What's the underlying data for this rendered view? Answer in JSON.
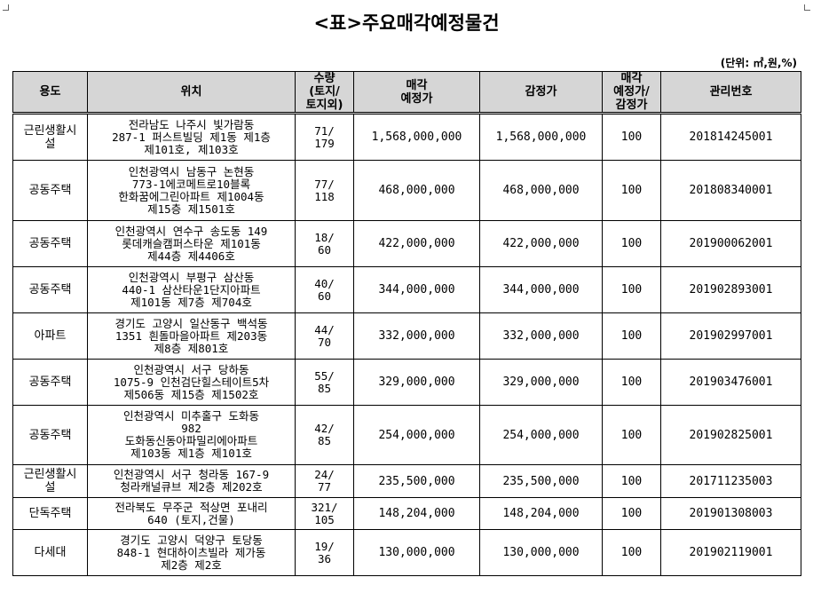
{
  "title": "<표>주요매각예정물건",
  "unit": "(단위: ㎡,원,%)",
  "headers": {
    "use": "용도",
    "location": "위치",
    "qty": [
      "수량",
      "(토지/",
      "토지외)"
    ],
    "sale_price": [
      "매각",
      "예정가"
    ],
    "appraisal": "감정가",
    "ratio": [
      "매각",
      "예정가/",
      "감정가"
    ],
    "mgmt_no": "관리번호"
  },
  "rows": [
    {
      "use": [
        "근린생활시",
        "설"
      ],
      "location": [
        "전라남도 나주시 빛가람동",
        "287-1 퍼스트빌딩 제1동 제1층",
        "제101호, 제103호"
      ],
      "qty": [
        "71/",
        "179"
      ],
      "sale_price": "1,568,000,000",
      "appraisal": "1,568,000,000",
      "ratio": "100",
      "mgmt_no": "201814245001"
    },
    {
      "use": [
        "공동주택"
      ],
      "location": [
        "인천광역시 남동구 논현동",
        "773-1에코메트로10블록",
        "한화꿈에그린아파트 제1004동",
        "제15층 제1501호"
      ],
      "qty": [
        "77/",
        "118"
      ],
      "sale_price": "468,000,000",
      "appraisal": "468,000,000",
      "ratio": "100",
      "mgmt_no": "201808340001"
    },
    {
      "use": [
        "공동주택"
      ],
      "location": [
        "인천광역시 연수구 송도동 149",
        "롯데캐슬캠퍼스타운 제101동",
        "제44층 제4406호"
      ],
      "qty": [
        "18/",
        "60"
      ],
      "sale_price": "422,000,000",
      "appraisal": "422,000,000",
      "ratio": "100",
      "mgmt_no": "201900062001"
    },
    {
      "use": [
        "공동주택"
      ],
      "location": [
        "인천광역시 부평구 삼산동",
        "440-1 삼산타운1단지아파트",
        "제101동 제7층 제704호"
      ],
      "qty": [
        "40/",
        "60"
      ],
      "sale_price": "344,000,000",
      "appraisal": "344,000,000",
      "ratio": "100",
      "mgmt_no": "201902893001"
    },
    {
      "use": [
        "아파트"
      ],
      "location": [
        "경기도 고양시 일산동구 백석동",
        "1351 흰돌마을아파트 제203동",
        "제8층 제801호"
      ],
      "qty": [
        "44/",
        "70"
      ],
      "sale_price": "332,000,000",
      "appraisal": "332,000,000",
      "ratio": "100",
      "mgmt_no": "201902997001"
    },
    {
      "use": [
        "공동주택"
      ],
      "location": [
        "인천광역시 서구 당하동",
        "1075-9 인천검단힐스테이트5차",
        "제506동 제15층 제1502호"
      ],
      "qty": [
        "55/",
        "85"
      ],
      "sale_price": "329,000,000",
      "appraisal": "329,000,000",
      "ratio": "100",
      "mgmt_no": "201903476001"
    },
    {
      "use": [
        "공동주택"
      ],
      "location": [
        "인천광역시 미추홀구 도화동",
        "982",
        "도화동신동아파밀리에아파트",
        "제103동 제1층 제101호"
      ],
      "qty": [
        "42/",
        "85"
      ],
      "sale_price": "254,000,000",
      "appraisal": "254,000,000",
      "ratio": "100",
      "mgmt_no": "201902825001"
    },
    {
      "use": [
        "근린생활시",
        "설"
      ],
      "location": [
        "인천광역시 서구 청라동 167-9",
        "청라캐널큐브 제2층 제202호"
      ],
      "qty": [
        "24/",
        "77"
      ],
      "sale_price": "235,500,000",
      "appraisal": "235,500,000",
      "ratio": "100",
      "mgmt_no": "201711235003"
    },
    {
      "use": [
        "단독주택"
      ],
      "location": [
        "전라북도 무주군 적상면 포내리",
        "640 (토지,건물)"
      ],
      "qty": [
        "321/",
        "105"
      ],
      "sale_price": "148,204,000",
      "appraisal": "148,204,000",
      "ratio": "100",
      "mgmt_no": "201901308003"
    },
    {
      "use": [
        "다세대"
      ],
      "location": [
        "경기도 고양시 덕양구 토당동",
        "848-1 현대하이츠빌라 제가동",
        "제2층 제2호"
      ],
      "qty": [
        "19/",
        "36"
      ],
      "sale_price": "130,000,000",
      "appraisal": "130,000,000",
      "ratio": "100",
      "mgmt_no": "201902119001"
    }
  ]
}
